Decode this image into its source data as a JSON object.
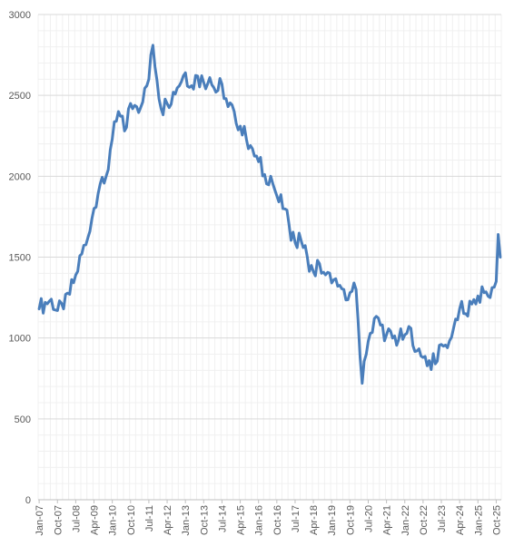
{
  "chart_data": {
    "type": "line",
    "title": "",
    "xlabel": "",
    "ylabel": "",
    "ylim": [
      0,
      3000
    ],
    "y_ticks": [
      "0",
      "500",
      "1000",
      "1500",
      "2000",
      "2500",
      "3000"
    ],
    "x_tick_labels": [
      "Jan-07",
      "Oct-07",
      "Jul-08",
      "Apr-09",
      "Jan-10",
      "Oct-10",
      "Jul-11",
      "Apr-12",
      "Jan-13",
      "Oct-13",
      "Jul-14",
      "Apr-15",
      "Jan-16",
      "Oct-16",
      "Jul-17",
      "Apr-18",
      "Jan-19",
      "Oct-19",
      "Jul-20",
      "Apr-21",
      "Jan-22",
      "Oct-22",
      "Jul-23",
      "Apr-24",
      "Jan-25",
      "Oct-25"
    ],
    "x_start": "Jan-07",
    "x_end": "Dec-25",
    "grid": true,
    "legend": "none",
    "series_color": "#4a7ebb",
    "anchors": [
      [
        "Jan-07",
        1180
      ],
      [
        "Apr-07",
        1220
      ],
      [
        "Jul-07",
        1240
      ],
      [
        "Oct-07",
        1170
      ],
      [
        "Jan-08",
        1180
      ],
      [
        "Apr-08",
        1270
      ],
      [
        "Jul-08",
        1390
      ],
      [
        "Oct-08",
        1520
      ],
      [
        "Jan-09",
        1620
      ],
      [
        "Apr-09",
        1800
      ],
      [
        "Jul-09",
        1950
      ],
      [
        "Oct-09",
        2000
      ],
      [
        "Jan-10",
        2230
      ],
      [
        "Apr-10",
        2400
      ],
      [
        "Jul-10",
        2280
      ],
      [
        "Oct-10",
        2450
      ],
      [
        "Jan-11",
        2430
      ],
      [
        "Apr-11",
        2460
      ],
      [
        "Jul-11",
        2600
      ],
      [
        "Sep-11",
        2810
      ],
      [
        "Jan-12",
        2420
      ],
      [
        "Apr-12",
        2450
      ],
      [
        "Jul-12",
        2520
      ],
      [
        "Jan-13",
        2640
      ],
      [
        "Apr-13",
        2560
      ],
      [
        "Jul-13",
        2620
      ],
      [
        "Oct-13",
        2580
      ],
      [
        "Jan-14",
        2610
      ],
      [
        "Apr-14",
        2520
      ],
      [
        "Jul-14",
        2570
      ],
      [
        "Oct-14",
        2430
      ],
      [
        "Jan-15",
        2400
      ],
      [
        "Apr-15",
        2310
      ],
      [
        "Jul-15",
        2230
      ],
      [
        "Oct-15",
        2170
      ],
      [
        "Jan-16",
        2090
      ],
      [
        "Apr-16",
        2010
      ],
      [
        "Jul-16",
        2000
      ],
      [
        "Oct-16",
        1880
      ],
      [
        "Jan-17",
        1800
      ],
      [
        "Apr-17",
        1700
      ],
      [
        "Jul-17",
        1590
      ],
      [
        "Oct-17",
        1600
      ],
      [
        "Jan-18",
        1500
      ],
      [
        "Apr-18",
        1410
      ],
      [
        "Jul-18",
        1460
      ],
      [
        "Oct-18",
        1390
      ],
      [
        "Jan-19",
        1340
      ],
      [
        "Apr-19",
        1320
      ],
      [
        "Jul-19",
        1300
      ],
      [
        "Oct-19",
        1280
      ],
      [
        "Jan-20",
        1300
      ],
      [
        "Apr-20",
        720
      ],
      [
        "Jul-20",
        980
      ],
      [
        "Oct-20",
        1120
      ],
      [
        "Jan-21",
        1080
      ],
      [
        "Apr-21",
        1020
      ],
      [
        "Jul-21",
        1000
      ],
      [
        "Oct-21",
        990
      ],
      [
        "Jan-22",
        1020
      ],
      [
        "Apr-22",
        1060
      ],
      [
        "Jul-22",
        920
      ],
      [
        "Oct-22",
        880
      ],
      [
        "Jan-23",
        860
      ],
      [
        "Apr-23",
        840
      ],
      [
        "Jul-23",
        960
      ],
      [
        "Oct-23",
        940
      ],
      [
        "Jan-24",
        1060
      ],
      [
        "Apr-24",
        1180
      ],
      [
        "Jul-24",
        1150
      ],
      [
        "Oct-24",
        1210
      ],
      [
        "Jan-25",
        1260
      ],
      [
        "Apr-25",
        1280
      ],
      [
        "Jul-25",
        1250
      ],
      [
        "Oct-25",
        1350
      ],
      [
        "Nov-25",
        1640
      ],
      [
        "Dec-25",
        1500
      ]
    ]
  }
}
